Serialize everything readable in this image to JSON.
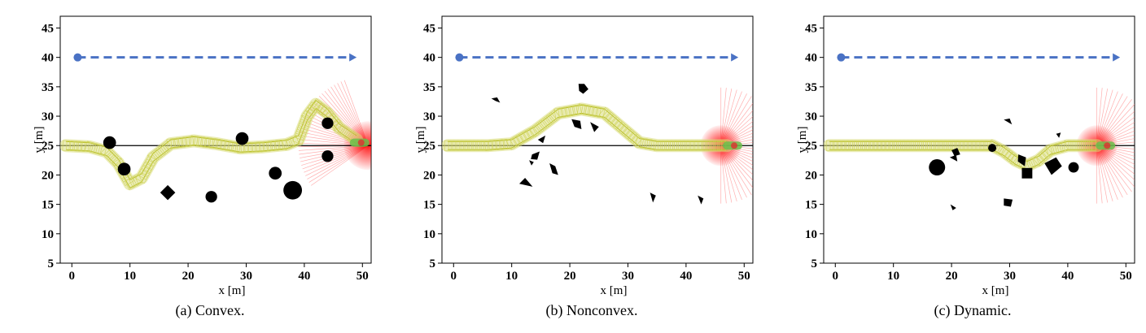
{
  "chart_data": [
    {
      "type": "scatter",
      "caption": "(a) Convex.",
      "xlabel": "x [m]",
      "ylabel": "y [m]",
      "xlim": [
        -2,
        51.5
      ],
      "ylim": [
        5,
        47
      ],
      "xticks": [
        0,
        10,
        20,
        30,
        40,
        50
      ],
      "yticks": [
        5,
        10,
        15,
        20,
        25,
        30,
        35,
        40,
        45
      ],
      "reference_line_y": 25,
      "global_path": {
        "start": [
          1,
          40
        ],
        "end": [
          49,
          40
        ]
      },
      "trajectory": [
        [
          -1,
          25
        ],
        [
          3,
          24.8
        ],
        [
          6,
          24
        ],
        [
          8,
          22
        ],
        [
          10,
          18.5
        ],
        [
          12,
          19.5
        ],
        [
          14,
          23
        ],
        [
          17,
          25.3
        ],
        [
          21,
          25.8
        ],
        [
          25,
          25.3
        ],
        [
          29,
          24.6
        ],
        [
          33,
          24.8
        ],
        [
          37,
          25.2
        ],
        [
          39,
          26
        ],
        [
          40.5,
          30
        ],
        [
          42,
          32
        ],
        [
          44,
          30.5
        ],
        [
          46,
          28
        ],
        [
          49,
          26
        ]
      ],
      "obstacles": [
        {
          "shape": "circle",
          "x": 6.5,
          "y": 25.5,
          "r": 1.1
        },
        {
          "shape": "circle",
          "x": 9,
          "y": 21,
          "r": 1.1
        },
        {
          "shape": "diamond",
          "x": 16.5,
          "y": 17,
          "r": 1.3
        },
        {
          "shape": "circle",
          "x": 24,
          "y": 16.3,
          "r": 1.0
        },
        {
          "shape": "circle",
          "x": 29.3,
          "y": 26.2,
          "r": 1.1
        },
        {
          "shape": "circle",
          "x": 35,
          "y": 20.3,
          "r": 1.1
        },
        {
          "shape": "circle",
          "x": 38,
          "y": 17.4,
          "r": 1.6
        },
        {
          "shape": "circle",
          "x": 44,
          "y": 28.8,
          "r": 1.0
        },
        {
          "shape": "circle",
          "x": 44,
          "y": 23.2,
          "r": 1.0
        }
      ],
      "vehicle": {
        "x": 49.5,
        "y": 25.5
      },
      "sensor_fan": {
        "x": 51,
        "y": 25,
        "from_angle": 110,
        "to_angle": 215,
        "radius": 12
      }
    },
    {
      "type": "scatter",
      "caption": "(b) Nonconvex.",
      "xlabel": "x [m]",
      "ylabel": "y [m]",
      "xlim": [
        -2,
        51.5
      ],
      "ylim": [
        5,
        47
      ],
      "xticks": [
        0,
        10,
        20,
        30,
        40,
        50
      ],
      "yticks": [
        5,
        10,
        15,
        20,
        25,
        30,
        35,
        40,
        45
      ],
      "reference_line_y": 25,
      "global_path": {
        "start": [
          1,
          40
        ],
        "end": [
          49,
          40
        ]
      },
      "trajectory": [
        [
          -1,
          25
        ],
        [
          6,
          25
        ],
        [
          10,
          25.3
        ],
        [
          14,
          27.5
        ],
        [
          18,
          30.5
        ],
        [
          22,
          31.2
        ],
        [
          26,
          30.5
        ],
        [
          29,
          28
        ],
        [
          32,
          25.5
        ],
        [
          35,
          25
        ],
        [
          40,
          25
        ],
        [
          47,
          25
        ]
      ],
      "obstacles": [
        {
          "shape": "poly",
          "pts": [
            [
              6.5,
              33
            ],
            [
              7.5,
              33.2
            ],
            [
              8,
              32.3
            ],
            [
              7.2,
              32.6
            ]
          ]
        },
        {
          "shape": "poly",
          "pts": [
            [
              21.5,
              35.5
            ],
            [
              22.5,
              35.5
            ],
            [
              23.2,
              34.6
            ],
            [
              22.3,
              33.8
            ],
            [
              21.6,
              34.3
            ]
          ]
        },
        {
          "shape": "poly",
          "pts": [
            [
              20.3,
              29.5
            ],
            [
              21.8,
              29.2
            ],
            [
              22,
              27.8
            ],
            [
              20.8,
              28.2
            ]
          ]
        },
        {
          "shape": "poly",
          "pts": [
            [
              23.5,
              29
            ],
            [
              25,
              28.2
            ],
            [
              24.2,
              27.3
            ]
          ]
        },
        {
          "shape": "poly",
          "pts": [
            [
              14.5,
              26
            ],
            [
              15.8,
              26.7
            ],
            [
              15.4,
              25.4
            ]
          ]
        },
        {
          "shape": "poly",
          "pts": [
            [
              13.5,
              23.5
            ],
            [
              14.8,
              24
            ],
            [
              14.4,
              22.6
            ],
            [
              13.3,
              22.7
            ]
          ]
        },
        {
          "shape": "poly",
          "pts": [
            [
              13,
              22.5
            ],
            [
              13.8,
              22.2
            ],
            [
              13.4,
              21.6
            ]
          ]
        },
        {
          "shape": "poly",
          "pts": [
            [
              16.5,
              22
            ],
            [
              17.5,
              21.5
            ],
            [
              18,
              20
            ],
            [
              17,
              20.3
            ]
          ]
        },
        {
          "shape": "poly",
          "pts": [
            [
              11.3,
              18.5
            ],
            [
              12.3,
              19.5
            ],
            [
              13.6,
              18
            ]
          ]
        },
        {
          "shape": "poly",
          "pts": [
            [
              33.8,
              17
            ],
            [
              34.8,
              16.5
            ],
            [
              34.3,
              15.3
            ]
          ]
        },
        {
          "shape": "poly",
          "pts": [
            [
              42,
              16.5
            ],
            [
              43,
              16
            ],
            [
              42.6,
              15
            ]
          ]
        }
      ],
      "vehicle": {
        "x": 48,
        "y": 25
      },
      "sensor_fan": {
        "x": 46,
        "y": 25,
        "from_angle": 0,
        "to_angle": 180,
        "radius": 10,
        "mirror": true
      }
    },
    {
      "type": "scatter",
      "caption": "(c) Dynamic.",
      "xlabel": "x [m]",
      "ylabel": "y [m]",
      "xlim": [
        -2,
        51.5
      ],
      "ylim": [
        5,
        47
      ],
      "xticks": [
        0,
        10,
        20,
        30,
        40,
        50
      ],
      "yticks": [
        5,
        10,
        15,
        20,
        25,
        30,
        35,
        40,
        45
      ],
      "reference_line_y": 25,
      "global_path": {
        "start": [
          1,
          40
        ],
        "end": [
          49,
          40
        ]
      },
      "trajectory": [
        [
          -1,
          25
        ],
        [
          10,
          25
        ],
        [
          20,
          25
        ],
        [
          27,
          25
        ],
        [
          29,
          24
        ],
        [
          31,
          22.5
        ],
        [
          33,
          21.6
        ],
        [
          35,
          22.5
        ],
        [
          37,
          24.2
        ],
        [
          40,
          25
        ],
        [
          45,
          25
        ]
      ],
      "obstacles": [
        {
          "shape": "circle",
          "x": 17.5,
          "y": 21.3,
          "r": 1.4
        },
        {
          "shape": "poly",
          "pts": [
            [
              20,
              24.2
            ],
            [
              21,
              24.6
            ],
            [
              21.5,
              23.5
            ],
            [
              20.5,
              23.2
            ]
          ]
        },
        {
          "shape": "poly",
          "pts": [
            [
              19.7,
              23
            ],
            [
              20.8,
              23.4
            ],
            [
              21,
              22.3
            ]
          ]
        },
        {
          "shape": "circle",
          "x": 27,
          "y": 24.6,
          "r": 0.7
        },
        {
          "shape": "poly",
          "pts": [
            [
              29,
              29.4
            ],
            [
              30,
              29.6
            ],
            [
              30.4,
              28.6
            ]
          ]
        },
        {
          "shape": "poly",
          "pts": [
            [
              31.5,
              23.5
            ],
            [
              32.8,
              23
            ],
            [
              32.6,
              21.5
            ],
            [
              31.4,
              22.3
            ]
          ]
        },
        {
          "shape": "rect",
          "x": 33,
          "y": 20.3,
          "w": 1.8,
          "h": 1.8
        },
        {
          "shape": "poly",
          "pts": [
            [
              36,
              22
            ],
            [
              38,
              23
            ],
            [
              39,
              21.5
            ],
            [
              37.2,
              20
            ]
          ]
        },
        {
          "shape": "circle",
          "x": 41,
          "y": 21.3,
          "r": 0.9
        },
        {
          "shape": "poly",
          "pts": [
            [
              38,
              27
            ],
            [
              38.8,
              27.2
            ],
            [
              38.5,
              26.3
            ]
          ]
        },
        {
          "shape": "poly",
          "pts": [
            [
              29,
              16
            ],
            [
              30.5,
              15.8
            ],
            [
              30.2,
              14.6
            ],
            [
              29,
              14.8
            ]
          ]
        },
        {
          "shape": "poly",
          "pts": [
            [
              19.8,
              15
            ],
            [
              20.8,
              14.4
            ],
            [
              20.2,
              14
            ]
          ]
        }
      ],
      "vehicle": {
        "x": 46.5,
        "y": 25
      },
      "sensor_fan": {
        "x": 45,
        "y": 25,
        "from_angle": 0,
        "to_angle": 180,
        "radius": 10,
        "mirror": true
      }
    }
  ]
}
